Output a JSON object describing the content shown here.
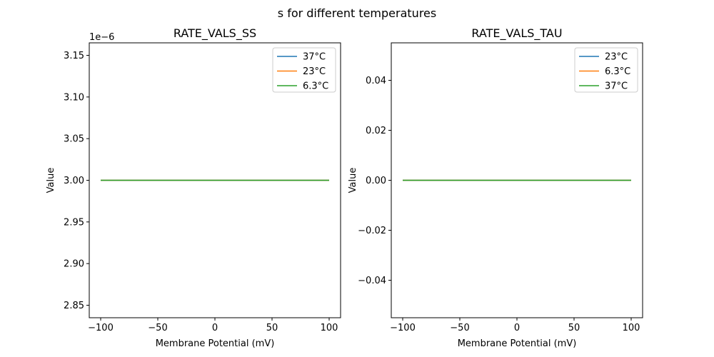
{
  "figure": {
    "suptitle": "s for different temperatures"
  },
  "chart_data": [
    {
      "type": "line",
      "title": "RATE_VALS_SS",
      "xlabel": "Membrane Potential (mV)",
      "ylabel": "Value",
      "xlim": [
        -110,
        110
      ],
      "ylim": [
        2.835e-06,
        3.165e-06
      ],
      "xticks": [
        -100,
        -50,
        0,
        50,
        100
      ],
      "xtick_labels": [
        "−100",
        "−50",
        "0",
        "50",
        "100"
      ],
      "yticks": [
        2.85e-06,
        2.9e-06,
        2.95e-06,
        3e-06,
        3.05e-06,
        3.1e-06,
        3.15e-06
      ],
      "ytick_labels": [
        "2.85",
        "2.90",
        "2.95",
        "3.00",
        "3.05",
        "3.10",
        "3.15"
      ],
      "offset_text": "1e−6",
      "grid": false,
      "legend_position": "top-right",
      "series": [
        {
          "name": "37°C",
          "color": "#1f77b4",
          "x": [
            -100,
            100
          ],
          "y": [
            3e-06,
            3e-06
          ]
        },
        {
          "name": "23°C",
          "color": "#ff7f0e",
          "x": [
            -100,
            100
          ],
          "y": [
            3e-06,
            3e-06
          ]
        },
        {
          "name": "6.3°C",
          "color": "#2ca02c",
          "x": [
            -100,
            100
          ],
          "y": [
            3e-06,
            3e-06
          ]
        }
      ]
    },
    {
      "type": "line",
      "title": "RATE_VALS_TAU",
      "xlabel": "Membrane Potential (mV)",
      "ylabel": "Value",
      "xlim": [
        -110,
        110
      ],
      "ylim": [
        -0.055,
        0.055
      ],
      "xticks": [
        -100,
        -50,
        0,
        50,
        100
      ],
      "xtick_labels": [
        "−100",
        "−50",
        "0",
        "50",
        "100"
      ],
      "yticks": [
        -0.04,
        -0.02,
        0.0,
        0.02,
        0.04
      ],
      "ytick_labels": [
        "−0.04",
        "−0.02",
        "0.00",
        "0.02",
        "0.04"
      ],
      "offset_text": "",
      "grid": false,
      "legend_position": "top-right",
      "series": [
        {
          "name": "23°C",
          "color": "#1f77b4",
          "x": [
            -100,
            100
          ],
          "y": [
            0,
            0
          ]
        },
        {
          "name": "6.3°C",
          "color": "#ff7f0e",
          "x": [
            -100,
            100
          ],
          "y": [
            0,
            0
          ]
        },
        {
          "name": "37°C",
          "color": "#2ca02c",
          "x": [
            -100,
            100
          ],
          "y": [
            0,
            0
          ]
        }
      ]
    }
  ]
}
